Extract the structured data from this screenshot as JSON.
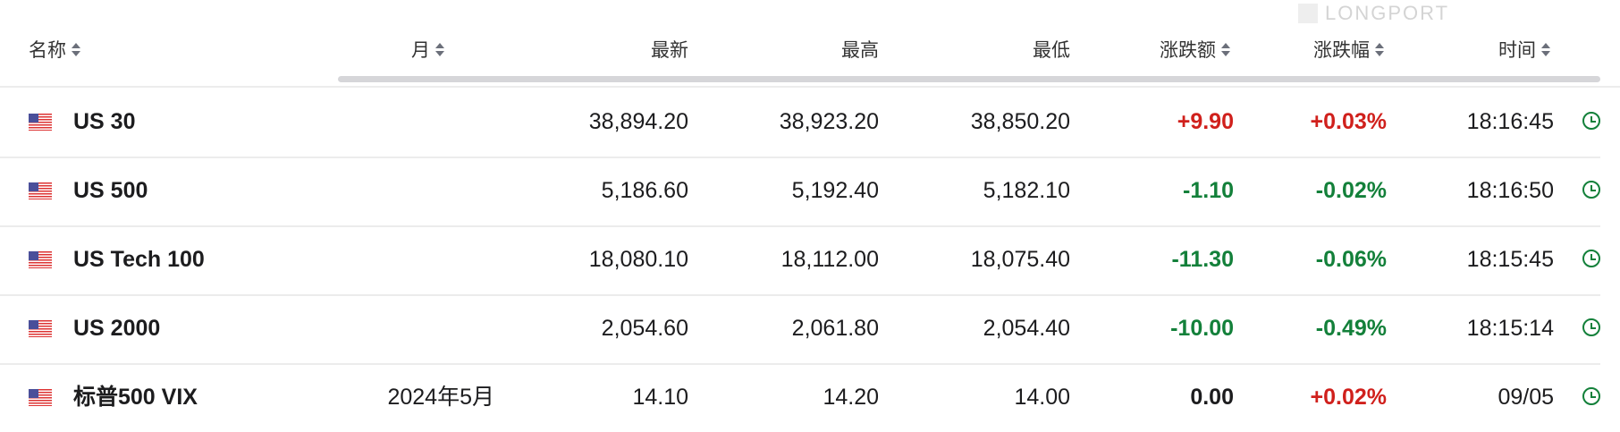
{
  "headers": {
    "name": "名称",
    "month": "月",
    "latest": "最新",
    "high": "最高",
    "low": "最低",
    "change": "涨跌额",
    "change_pct": "涨跌幅",
    "time": "时间"
  },
  "colors": {
    "up": "#d0201c",
    "down": "#13803a"
  },
  "watermark": "LONGPORT",
  "rows": [
    {
      "flag": "us-flag-icon",
      "name": "US 30",
      "month": "",
      "latest": "38,894.20",
      "high": "38,923.20",
      "low": "38,850.20",
      "change": "+9.90",
      "change_pct": "+0.03%",
      "time": "18:16:45",
      "change_dir": "up",
      "pct_dir": "up"
    },
    {
      "flag": "us-flag-icon",
      "name": "US 500",
      "month": "",
      "latest": "5,186.60",
      "high": "5,192.40",
      "low": "5,182.10",
      "change": "-1.10",
      "change_pct": "-0.02%",
      "time": "18:16:50",
      "change_dir": "down",
      "pct_dir": "down"
    },
    {
      "flag": "us-flag-icon",
      "name": "US Tech 100",
      "month": "",
      "latest": "18,080.10",
      "high": "18,112.00",
      "low": "18,075.40",
      "change": "-11.30",
      "change_pct": "-0.06%",
      "time": "18:15:45",
      "change_dir": "down",
      "pct_dir": "down"
    },
    {
      "flag": "us-flag-icon",
      "name": "US 2000",
      "month": "",
      "latest": "2,054.60",
      "high": "2,061.80",
      "low": "2,054.40",
      "change": "-10.00",
      "change_pct": "-0.49%",
      "time": "18:15:14",
      "change_dir": "down",
      "pct_dir": "down"
    },
    {
      "flag": "us-flag-icon",
      "name": "标普500 VIX",
      "month": "2024年5月",
      "latest": "14.10",
      "high": "14.20",
      "low": "14.00",
      "change": "0.00",
      "change_pct": "+0.02%",
      "time": "09/05",
      "change_dir": "flat",
      "pct_dir": "up"
    }
  ]
}
